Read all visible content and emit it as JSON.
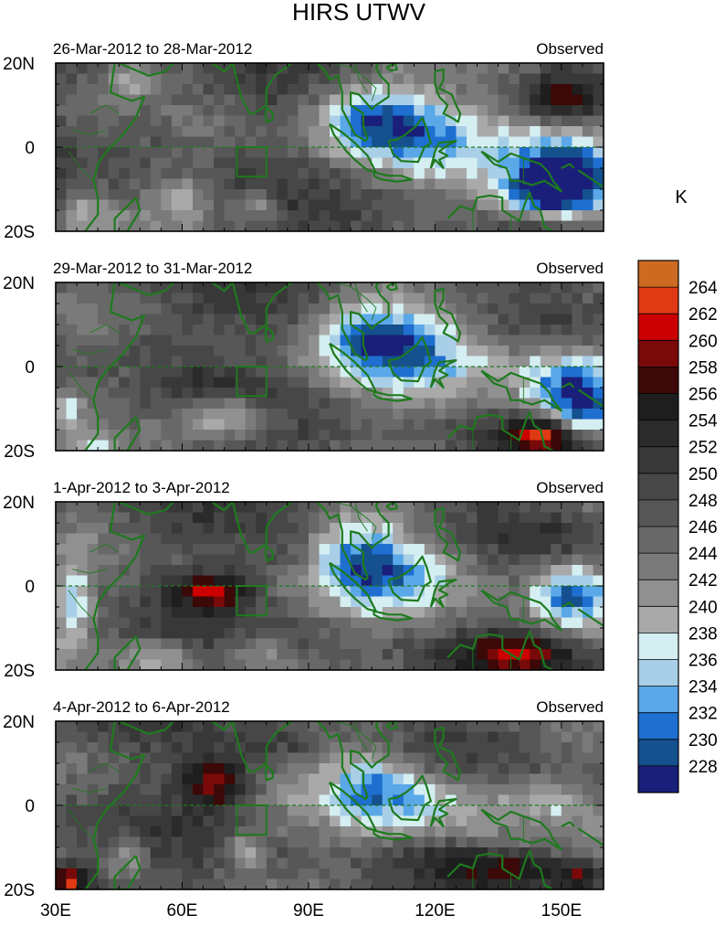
{
  "title": "HIRS UTWV",
  "colorbar": {
    "unit": "K",
    "levels": [
      264,
      262,
      260,
      258,
      256,
      254,
      252,
      250,
      248,
      246,
      244,
      242,
      240,
      238,
      236,
      234,
      232,
      230,
      228
    ],
    "colors": [
      "#cc6a22",
      "#e03a14",
      "#cc0000",
      "#7a0a0a",
      "#3c0808",
      "#1e1e1e",
      "#2b2b2b",
      "#383838",
      "#474747",
      "#575757",
      "#686868",
      "#7a7a7a",
      "#909090",
      "#a9a9a9",
      "#d4eef1",
      "#a9cfe8",
      "#5aa8e8",
      "#1e6fcf",
      "#15508f",
      "#1a1f7a"
    ]
  },
  "chart_data": {
    "type": "heatmap",
    "title": "HIRS UTWV",
    "x_ticks": [
      "30E",
      "60E",
      "90E",
      "120E",
      "150E"
    ],
    "x_tick_values": [
      30,
      60,
      90,
      120,
      150
    ],
    "xlim": [
      30,
      160
    ],
    "y_ticks": [
      "20N",
      "0",
      "20S"
    ],
    "y_tick_values": [
      20,
      0,
      -20
    ],
    "ylim": [
      -20,
      20
    ],
    "panels": [
      {
        "label": "26-Mar-2012 to 28-Mar-2012",
        "right_label": "Observed"
      },
      {
        "label": "29-Mar-2012 to 31-Mar-2012",
        "right_label": "Observed"
      },
      {
        "label": "1-Apr-2012 to 3-Apr-2012",
        "right_label": "Observed"
      },
      {
        "label": "4-Apr-2012 to 6-Apr-2012",
        "right_label": "Observed"
      }
    ]
  }
}
